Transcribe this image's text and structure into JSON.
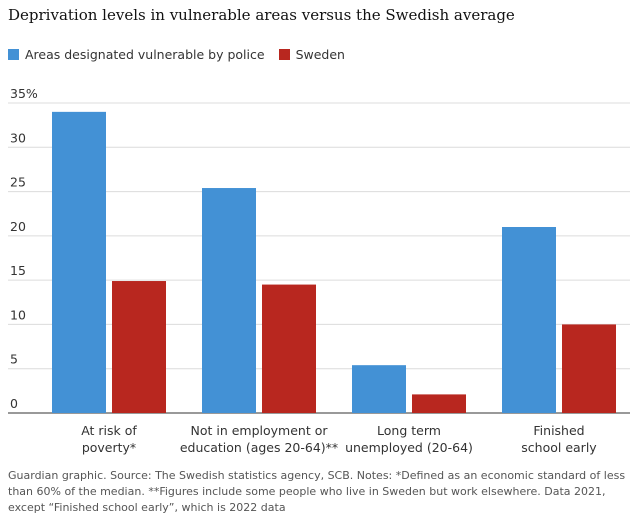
{
  "chart_data": {
    "type": "bar",
    "title": "Deprivation levels in vulnerable areas versus the Swedish average",
    "categories": [
      [
        "At risk of",
        "poverty*"
      ],
      [
        "Not in employment or",
        "education (ages 20-64)**"
      ],
      [
        "Long term",
        "unemployed (20-64)"
      ],
      [
        "Finished",
        "school early"
      ]
    ],
    "series": [
      {
        "name": "Areas designated vulnerable by police",
        "color": "#4391d5",
        "values": [
          34,
          25.4,
          5.4,
          21
        ]
      },
      {
        "name": "Sweden",
        "color": "#b8271f",
        "values": [
          14.9,
          14.5,
          2.1,
          10
        ]
      }
    ],
    "y_ticks": [
      "35%",
      "30",
      "25",
      "20",
      "15",
      "10",
      "5",
      "0"
    ],
    "ylim": [
      0,
      35
    ],
    "grid": true,
    "legend": "top-left",
    "xlabel": "",
    "ylabel": ""
  },
  "footnote": "Guardian graphic. Source: The Swedish statistics agency, SCB. Notes: *Defined as an economic standard of less than 60% of the median. **Figures include some people who live in Sweden but work elsewhere. Data 2021, except “Finished school early”, which is 2022 data"
}
